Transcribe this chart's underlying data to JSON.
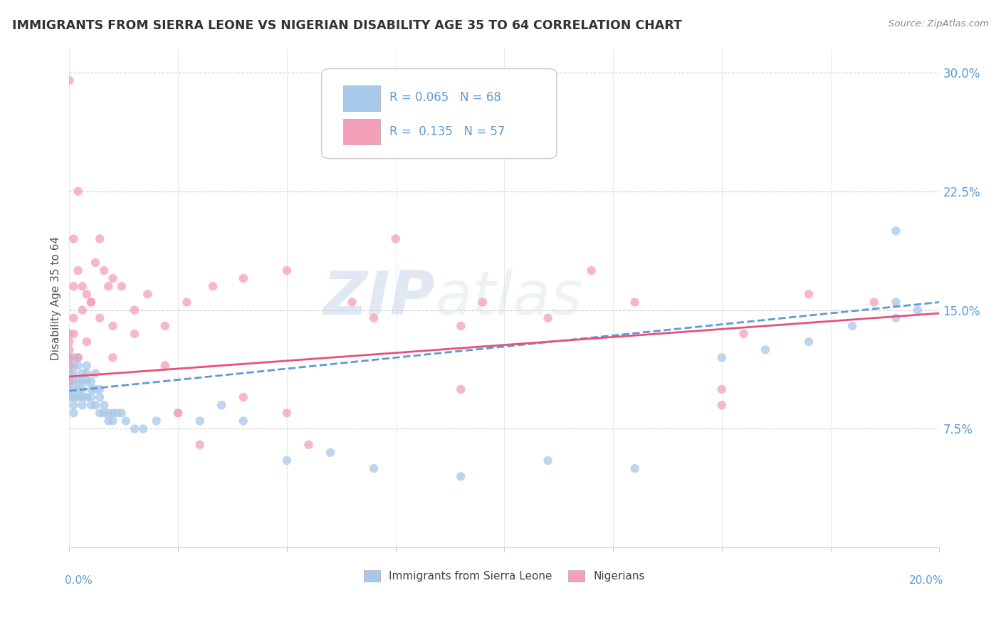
{
  "title": "IMMIGRANTS FROM SIERRA LEONE VS NIGERIAN DISABILITY AGE 35 TO 64 CORRELATION CHART",
  "source": "Source: ZipAtlas.com",
  "ylabel": "Disability Age 35 to 64",
  "yticks": [
    0.075,
    0.15,
    0.225,
    0.3
  ],
  "ytick_labels": [
    "7.5%",
    "15.0%",
    "22.5%",
    "30.0%"
  ],
  "xlim": [
    0.0,
    0.2
  ],
  "ylim": [
    0.0,
    0.315
  ],
  "legend1_label": "R = 0.065   N = 68",
  "legend2_label": "R =  0.135   N = 57",
  "legend_bottom_label1": "Immigrants from Sierra Leone",
  "legend_bottom_label2": "Nigerians",
  "sierra_leone_color": "#a8c8e8",
  "nigerian_color": "#f4a0b8",
  "sierra_leone_line_color": "#5b9bd5",
  "nigerian_line_color": "#e8507a",
  "watermark_zip": "ZIP",
  "watermark_atlas": "atlas",
  "sl_x": [
    0.0,
    0.0,
    0.0,
    0.0,
    0.0,
    0.0,
    0.001,
    0.001,
    0.001,
    0.001,
    0.001,
    0.001,
    0.001,
    0.001,
    0.002,
    0.002,
    0.002,
    0.002,
    0.002,
    0.003,
    0.003,
    0.003,
    0.003,
    0.003,
    0.004,
    0.004,
    0.004,
    0.004,
    0.005,
    0.005,
    0.005,
    0.005,
    0.006,
    0.006,
    0.006,
    0.007,
    0.007,
    0.007,
    0.008,
    0.008,
    0.009,
    0.009,
    0.01,
    0.01,
    0.011,
    0.012,
    0.013,
    0.015,
    0.017,
    0.02,
    0.025,
    0.03,
    0.035,
    0.04,
    0.05,
    0.06,
    0.07,
    0.09,
    0.11,
    0.13,
    0.15,
    0.16,
    0.17,
    0.18,
    0.19,
    0.19,
    0.195,
    0.19
  ],
  "sl_y": [
    0.115,
    0.12,
    0.105,
    0.11,
    0.1,
    0.095,
    0.115,
    0.12,
    0.11,
    0.105,
    0.1,
    0.095,
    0.09,
    0.085,
    0.115,
    0.12,
    0.105,
    0.1,
    0.095,
    0.11,
    0.105,
    0.1,
    0.095,
    0.09,
    0.115,
    0.11,
    0.105,
    0.095,
    0.105,
    0.1,
    0.095,
    0.09,
    0.11,
    0.1,
    0.09,
    0.1,
    0.095,
    0.085,
    0.09,
    0.085,
    0.085,
    0.08,
    0.085,
    0.08,
    0.085,
    0.085,
    0.08,
    0.075,
    0.075,
    0.08,
    0.085,
    0.08,
    0.09,
    0.08,
    0.055,
    0.06,
    0.05,
    0.045,
    0.055,
    0.05,
    0.12,
    0.125,
    0.13,
    0.14,
    0.145,
    0.155,
    0.15,
    0.2
  ],
  "ng_x": [
    0.0,
    0.0,
    0.0,
    0.001,
    0.001,
    0.001,
    0.002,
    0.002,
    0.003,
    0.003,
    0.004,
    0.005,
    0.006,
    0.007,
    0.008,
    0.009,
    0.01,
    0.012,
    0.015,
    0.018,
    0.022,
    0.027,
    0.033,
    0.04,
    0.05,
    0.065,
    0.075,
    0.09,
    0.11,
    0.13,
    0.15,
    0.17,
    0.185,
    0.155,
    0.12,
    0.095,
    0.07,
    0.055,
    0.04,
    0.03,
    0.022,
    0.015,
    0.01,
    0.007,
    0.004,
    0.002,
    0.001,
    0.0,
    0.0,
    0.0,
    0.0,
    0.005,
    0.01,
    0.025,
    0.05,
    0.09,
    0.15
  ],
  "ng_y": [
    0.135,
    0.13,
    0.115,
    0.195,
    0.165,
    0.145,
    0.225,
    0.175,
    0.165,
    0.15,
    0.16,
    0.155,
    0.18,
    0.195,
    0.175,
    0.165,
    0.17,
    0.165,
    0.15,
    0.16,
    0.14,
    0.155,
    0.165,
    0.17,
    0.175,
    0.155,
    0.195,
    0.14,
    0.145,
    0.155,
    0.1,
    0.16,
    0.155,
    0.135,
    0.175,
    0.155,
    0.145,
    0.065,
    0.095,
    0.065,
    0.115,
    0.135,
    0.14,
    0.145,
    0.13,
    0.12,
    0.135,
    0.125,
    0.12,
    0.105,
    0.295,
    0.155,
    0.12,
    0.085,
    0.085,
    0.1,
    0.09
  ],
  "sl_trend_x0": 0.0,
  "sl_trend_y0": 0.099,
  "sl_trend_x1": 0.2,
  "sl_trend_y1": 0.155,
  "ng_trend_x0": 0.0,
  "ng_trend_y0": 0.108,
  "ng_trend_x1": 0.2,
  "ng_trend_y1": 0.148
}
